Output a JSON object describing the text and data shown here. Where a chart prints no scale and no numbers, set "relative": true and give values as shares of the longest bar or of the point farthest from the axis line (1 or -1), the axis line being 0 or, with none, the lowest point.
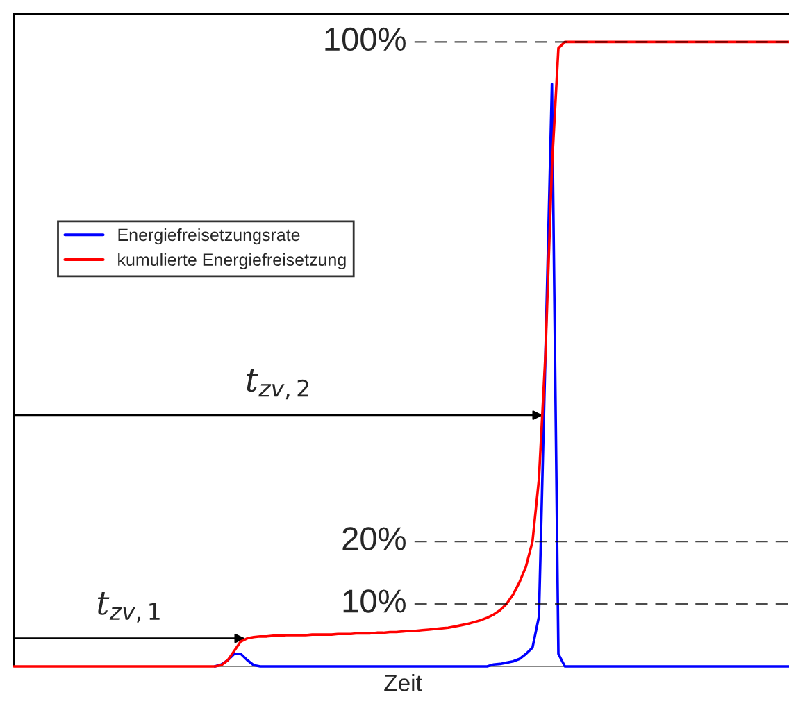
{
  "chart_data": {
    "type": "line",
    "relative": true,
    "xlabel": "Zeit",
    "categories": [
      null,
      null,
      null,
      null,
      null,
      null,
      null,
      null,
      null,
      null,
      null,
      null,
      null,
      null,
      null,
      null,
      null,
      null,
      null,
      null,
      null,
      null,
      null,
      null,
      null,
      null,
      null,
      null,
      null,
      null,
      null,
      null,
      null,
      null,
      null,
      null,
      null,
      null,
      null,
      null,
      null,
      null,
      null,
      null,
      null,
      null,
      null,
      null,
      null,
      null,
      null,
      null,
      null,
      null,
      null,
      null,
      null,
      null,
      null,
      null,
      null,
      null,
      null,
      null,
      null,
      null,
      null,
      null,
      null,
      null,
      null,
      null,
      null,
      null,
      null,
      null,
      null,
      null,
      null,
      null,
      null,
      null,
      null,
      null,
      null,
      null,
      null,
      null,
      null,
      null,
      null,
      null,
      null,
      null,
      null,
      null,
      null,
      null,
      null,
      null,
      null,
      null,
      null,
      null,
      null,
      null,
      null,
      null,
      null,
      null,
      null,
      null,
      null,
      null,
      null,
      null,
      null,
      null,
      null,
      null,
      null
    ],
    "series": [
      {
        "name": "Energiefreisetzungsrate",
        "color": "#0000ff",
        "values": [
          null,
          null,
          null,
          null,
          null,
          null,
          null,
          null,
          null,
          null,
          null,
          null,
          null,
          null,
          null,
          null,
          null,
          null,
          null,
          null,
          null,
          null,
          null,
          null,
          null,
          null,
          null,
          null,
          null,
          null,
          null,
          0,
          0.003,
          0.01,
          0.02,
          0.02,
          0.01,
          0.002,
          0,
          0,
          0,
          0,
          0,
          0,
          0,
          0,
          0,
          0,
          0,
          0,
          0,
          0,
          0,
          0,
          0,
          0,
          0,
          0,
          0,
          0,
          0,
          0,
          0,
          0,
          0,
          0,
          0,
          0,
          0,
          0,
          0,
          0,
          0,
          0,
          0.003,
          0.004,
          0.006,
          0.008,
          0.012,
          0.02,
          0.03,
          0.08,
          0.5,
          0.933,
          0.02,
          0,
          0,
          0,
          0,
          0,
          0,
          0,
          0,
          0,
          0,
          0,
          0,
          0,
          0,
          0,
          0,
          0,
          0,
          0,
          0,
          0,
          0,
          0,
          0,
          0,
          0,
          0,
          0,
          0,
          0,
          0,
          0,
          0,
          0,
          0,
          0
        ]
      },
      {
        "name": "kumulierte Energiefreisetzung",
        "color": "#ff0000",
        "values": [
          0,
          0,
          0,
          0,
          0,
          0,
          0,
          0,
          0,
          0,
          0,
          0,
          0,
          0,
          0,
          0,
          0,
          0,
          0,
          0,
          0,
          0,
          0,
          0,
          0,
          0,
          0,
          0,
          0,
          0,
          0,
          0,
          0.002,
          0.01,
          0.025,
          0.04,
          0.045,
          0.047,
          0.048,
          0.048,
          0.049,
          0.049,
          0.05,
          0.05,
          0.05,
          0.05,
          0.051,
          0.051,
          0.051,
          0.051,
          0.052,
          0.052,
          0.052,
          0.053,
          0.053,
          0.053,
          0.054,
          0.054,
          0.055,
          0.055,
          0.056,
          0.057,
          0.057,
          0.058,
          0.059,
          0.06,
          0.061,
          0.062,
          0.064,
          0.066,
          0.068,
          0.071,
          0.074,
          0.078,
          0.083,
          0.09,
          0.1,
          0.115,
          0.135,
          0.16,
          0.2,
          0.3,
          0.5,
          0.8,
          0.99,
          1,
          1,
          1,
          1,
          1,
          1,
          1,
          1,
          1,
          1,
          1,
          1,
          1,
          1,
          1,
          1,
          1,
          1,
          1,
          1,
          1,
          1,
          1,
          1,
          1,
          1,
          1,
          1,
          1,
          1,
          1,
          1,
          1,
          1,
          1,
          1
        ]
      }
    ],
    "ref_lines": [
      {
        "axis": "y",
        "value": 1,
        "label": "100%",
        "color": "#000000",
        "line_style": "dashed"
      },
      {
        "axis": "y",
        "value": 0.2,
        "label": "20%",
        "color": "#000000",
        "line_style": "dashed"
      },
      {
        "axis": "y",
        "value": 0.1,
        "label": "10%",
        "color": "#000000",
        "line_style": "dashed"
      }
    ],
    "annotations": [
      "t$_{zv,1}$",
      "t$_{zv,2}$"
    ],
    "legend": "left",
    "marker": "none",
    "line_style": "solid"
  }
}
